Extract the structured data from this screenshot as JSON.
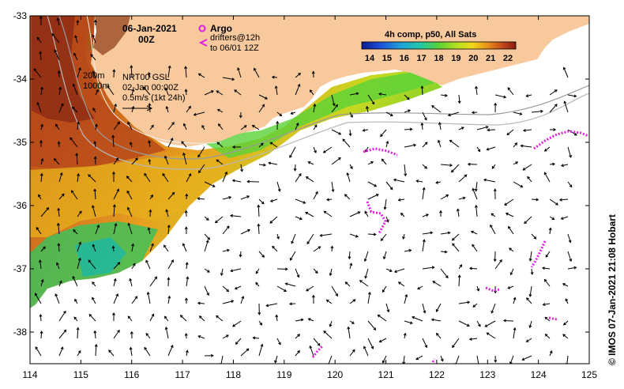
{
  "title": {
    "date": "06-Jan-2021",
    "time": "00Z"
  },
  "legend": {
    "argo_label": "Argo",
    "drifters_label": "drifters@12h",
    "drifters_to": "to 06/01 12Z",
    "argo_color": "#e020e0",
    "drifter_color": "#e020e0"
  },
  "colorbar": {
    "title": "4h comp, p50, All Sats",
    "ticks": [
      "14",
      "15",
      "16",
      "17",
      "18",
      "19",
      "20",
      "21",
      "22"
    ]
  },
  "annotations": {
    "isobath_200": "200m",
    "isobath_1000": "1000m",
    "altimetry": "NRT00 GSL",
    "altimetry_date": "02-Jan 00:00Z",
    "scale_label": "0.5m/s (1kt 24h)"
  },
  "credit": "© IMOS 07-Jan-2021 21:08 Hobart",
  "axes": {
    "x_ticks": [
      "114",
      "115",
      "116",
      "117",
      "118",
      "119",
      "120",
      "121",
      "122",
      "123",
      "124",
      "125"
    ],
    "y_ticks": [
      "-33",
      "-34",
      "-35",
      "-36",
      "-37",
      "-38"
    ],
    "x_range": [
      114,
      125
    ],
    "y_range": [
      -38.5,
      -33
    ]
  },
  "colors": {
    "land": "#f7c99d",
    "ocean_bg": "#ffffff",
    "drifter": "#e020e0"
  }
}
